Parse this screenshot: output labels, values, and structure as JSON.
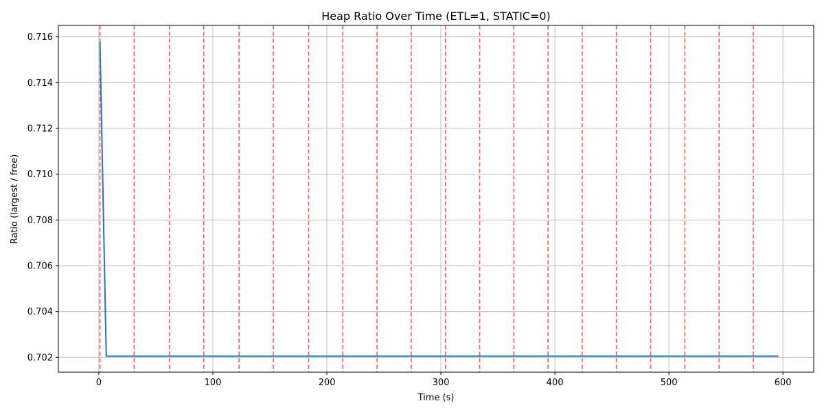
{
  "chart_data": {
    "type": "line",
    "title": "Heap Ratio Over Time (ETL=1, STATIC=0)",
    "xlabel": "Time (s)",
    "ylabel": "Ratio (largest / free)",
    "xlim": [
      -35.5,
      627
    ],
    "ylim": [
      0.70135,
      0.7165
    ],
    "xticks": [
      0,
      100,
      200,
      300,
      400,
      500,
      600
    ],
    "xtick_labels": [
      "0",
      "100",
      "200",
      "300",
      "400",
      "500",
      "600"
    ],
    "yticks": [
      0.702,
      0.704,
      0.706,
      0.708,
      0.71,
      0.712,
      0.714,
      0.716
    ],
    "ytick_labels": [
      "0.702",
      "0.704",
      "0.706",
      "0.708",
      "0.710",
      "0.712",
      "0.714",
      "0.716"
    ],
    "grid": true,
    "series": [
      {
        "color": "#1f77b4",
        "x": [
          1,
          6.5,
          596
        ],
        "y": [
          0.71578,
          0.70205,
          0.70205
        ]
      }
    ],
    "vlines": {
      "style": "dashed",
      "color": "#ff0000",
      "opacity": 0.65,
      "x": [
        1,
        31,
        62,
        92,
        123,
        153,
        184,
        214,
        244,
        274,
        304,
        334,
        364,
        394,
        424,
        454,
        484,
        514,
        544,
        574
      ]
    }
  }
}
